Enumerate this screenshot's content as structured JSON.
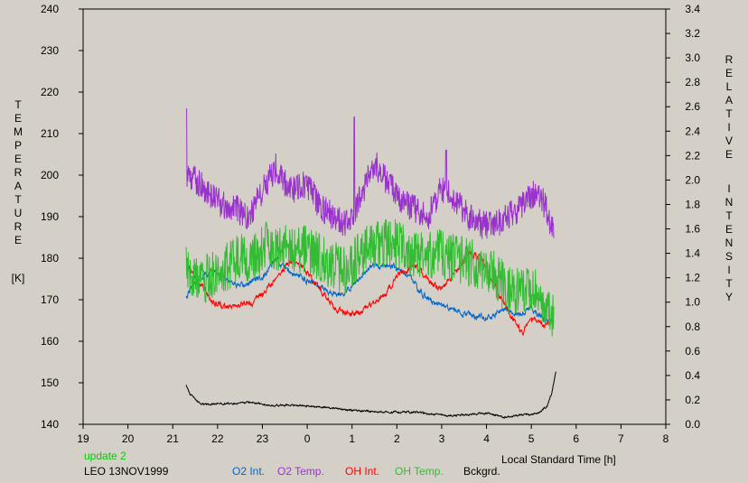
{
  "chart_data": {
    "type": "line",
    "station_label": "LEO 13NOV1999",
    "update_label": "update 2",
    "xlabel": "Local Standard Time [h]",
    "ylabel_left": [
      "T",
      "E",
      "M",
      "P",
      "E",
      "R",
      "A",
      "T",
      "U",
      "R",
      "E"
    ],
    "ylabel_left_unit": "[K]",
    "ylabel_right_1": [
      "R",
      "E",
      "L",
      "A",
      "T",
      "I",
      "V",
      "E"
    ],
    "ylabel_right_2": [
      "I",
      "N",
      "T",
      "E",
      "N",
      "S",
      "I",
      "T",
      "Y"
    ],
    "x_ticks": [
      "19",
      "20",
      "21",
      "22",
      "23",
      "0",
      "1",
      "2",
      "3",
      "4",
      "5",
      "6",
      "7",
      "8"
    ],
    "x_range": [
      19,
      32
    ],
    "y_left_ticks": [
      "140",
      "150",
      "160",
      "170",
      "180",
      "190",
      "200",
      "210",
      "220",
      "230",
      "240"
    ],
    "y_left_range": [
      140,
      240
    ],
    "y_right_ticks": [
      "0.0",
      "0.2",
      "0.4",
      "0.6",
      "0.8",
      "1.0",
      "1.2",
      "1.4",
      "1.6",
      "1.8",
      "2.0",
      "2.2",
      "2.4",
      "2.6",
      "2.8",
      "3.0",
      "3.2",
      "3.4"
    ],
    "y_right_range": [
      0,
      3.4
    ],
    "series": [
      {
        "name": "O2 Int.",
        "axis": "right",
        "color": "#0066cc",
        "noise": 0.02,
        "x": [
          21.3,
          21.5,
          21.7,
          21.9,
          22.2,
          22.5,
          22.8,
          23.0,
          23.3,
          23.6,
          23.9,
          24.2,
          24.5,
          24.8,
          25.1,
          25.4,
          25.7,
          26.0,
          26.3,
          26.6,
          26.9,
          27.2,
          27.5,
          27.8,
          28.1,
          28.4,
          28.7,
          29.0,
          29.3,
          29.5
        ],
        "y": [
          1.05,
          1.15,
          1.22,
          1.25,
          1.2,
          1.12,
          1.18,
          1.2,
          1.35,
          1.25,
          1.2,
          1.15,
          1.08,
          1.05,
          1.18,
          1.3,
          1.3,
          1.28,
          1.2,
          1.05,
          0.98,
          0.95,
          0.9,
          0.88,
          0.88,
          0.95,
          0.9,
          0.95,
          0.85,
          0.85
        ]
      },
      {
        "name": "O2 Temp.",
        "axis": "left",
        "color": "#9933cc",
        "noise": 3.5,
        "x": [
          21.3,
          21.5,
          21.8,
          22.1,
          22.4,
          22.7,
          23.0,
          23.3,
          23.6,
          24.0,
          24.3,
          24.6,
          24.9,
          25.2,
          25.5,
          25.8,
          26.1,
          26.4,
          26.7,
          27.0,
          27.3,
          27.6,
          27.9,
          28.2,
          28.5,
          28.8,
          29.1,
          29.3,
          29.5
        ],
        "y": [
          200,
          199,
          196,
          193,
          192,
          190,
          196,
          202,
          196,
          198,
          192,
          190,
          188,
          195,
          203,
          198,
          194,
          192,
          190,
          197,
          194,
          190,
          188,
          188,
          190,
          193,
          196,
          193,
          186
        ],
        "spikes": [
          [
            21.3,
            216
          ],
          [
            25.05,
            214
          ],
          [
            27.1,
            206
          ]
        ]
      },
      {
        "name": "OH Int.",
        "axis": "right",
        "color": "#ff0000",
        "noise": 0.02,
        "x": [
          21.3,
          21.5,
          21.7,
          21.9,
          22.2,
          22.5,
          22.8,
          23.1,
          23.4,
          23.7,
          24.0,
          24.3,
          24.6,
          24.9,
          25.2,
          25.5,
          25.8,
          26.1,
          26.4,
          26.7,
          27.0,
          27.3,
          27.6,
          27.9,
          28.1,
          28.3,
          28.6,
          28.8,
          29.1,
          29.3,
          29.5
        ],
        "y": [
          1.35,
          1.2,
          1.1,
          1.0,
          0.95,
          0.98,
          1.0,
          1.1,
          1.25,
          1.35,
          1.25,
          1.1,
          0.95,
          0.9,
          0.92,
          1.0,
          1.1,
          1.25,
          1.3,
          1.18,
          1.1,
          1.25,
          1.4,
          1.35,
          1.2,
          1.05,
          0.85,
          0.75,
          0.88,
          0.78,
          0.9
        ]
      },
      {
        "name": "OH Temp.",
        "axis": "left",
        "color": "#33bb33",
        "noise": 6,
        "x": [
          21.3,
          21.6,
          21.9,
          22.2,
          22.5,
          22.8,
          23.1,
          23.4,
          23.7,
          24.0,
          24.3,
          24.6,
          24.9,
          25.2,
          25.5,
          25.8,
          26.1,
          26.4,
          26.7,
          27.0,
          27.3,
          27.6,
          27.9,
          28.2,
          28.5,
          28.8,
          29.1,
          29.3,
          29.5
        ],
        "y": [
          177,
          174,
          176,
          178,
          180,
          180,
          183,
          182,
          182,
          182,
          180,
          178,
          177,
          181,
          183,
          184,
          183,
          181,
          181,
          181,
          180,
          179,
          178,
          176,
          172,
          172,
          173,
          168,
          166
        ]
      },
      {
        "name": "Bckgrd.",
        "axis": "right",
        "color": "#000000",
        "noise": 0.006,
        "x": [
          21.3,
          21.4,
          21.6,
          21.8,
          22.0,
          22.4,
          22.8,
          23.2,
          23.6,
          24.0,
          24.4,
          24.8,
          25.2,
          25.6,
          26.0,
          26.4,
          26.8,
          27.2,
          27.6,
          28.0,
          28.4,
          28.6,
          28.8,
          29.0,
          29.2,
          29.35,
          29.45,
          29.55
        ],
        "y": [
          0.32,
          0.24,
          0.17,
          0.16,
          0.17,
          0.17,
          0.18,
          0.15,
          0.16,
          0.15,
          0.14,
          0.12,
          0.11,
          0.1,
          0.1,
          0.1,
          0.08,
          0.07,
          0.08,
          0.09,
          0.06,
          0.07,
          0.08,
          0.08,
          0.1,
          0.15,
          0.25,
          0.43
        ]
      }
    ]
  }
}
